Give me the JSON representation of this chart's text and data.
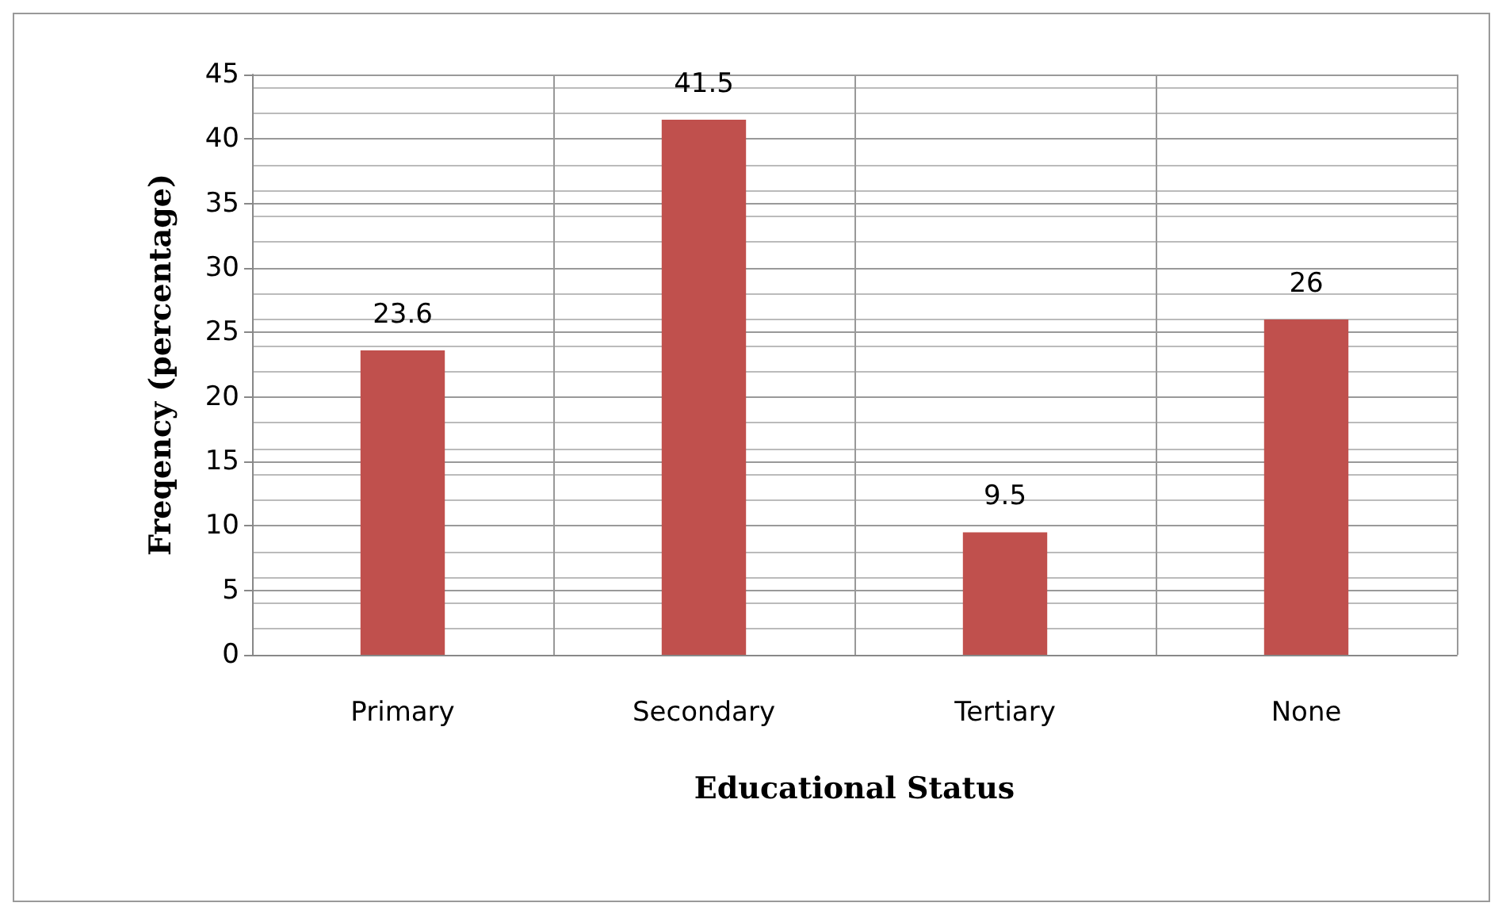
{
  "chart_data": {
    "type": "bar",
    "xlabel": "Educational Status",
    "ylabel": "Freqency (percentage)",
    "categories": [
      "Primary",
      "Secondary",
      "Tertiary",
      "None"
    ],
    "values": [
      23.6,
      41.5,
      9.5,
      26
    ],
    "color": "#c0504d",
    "ylim": [
      0,
      45
    ],
    "yticks": [
      0,
      5,
      10,
      15,
      20,
      25,
      30,
      35,
      40,
      45
    ],
    "grid": true,
    "data_labels": true
  }
}
